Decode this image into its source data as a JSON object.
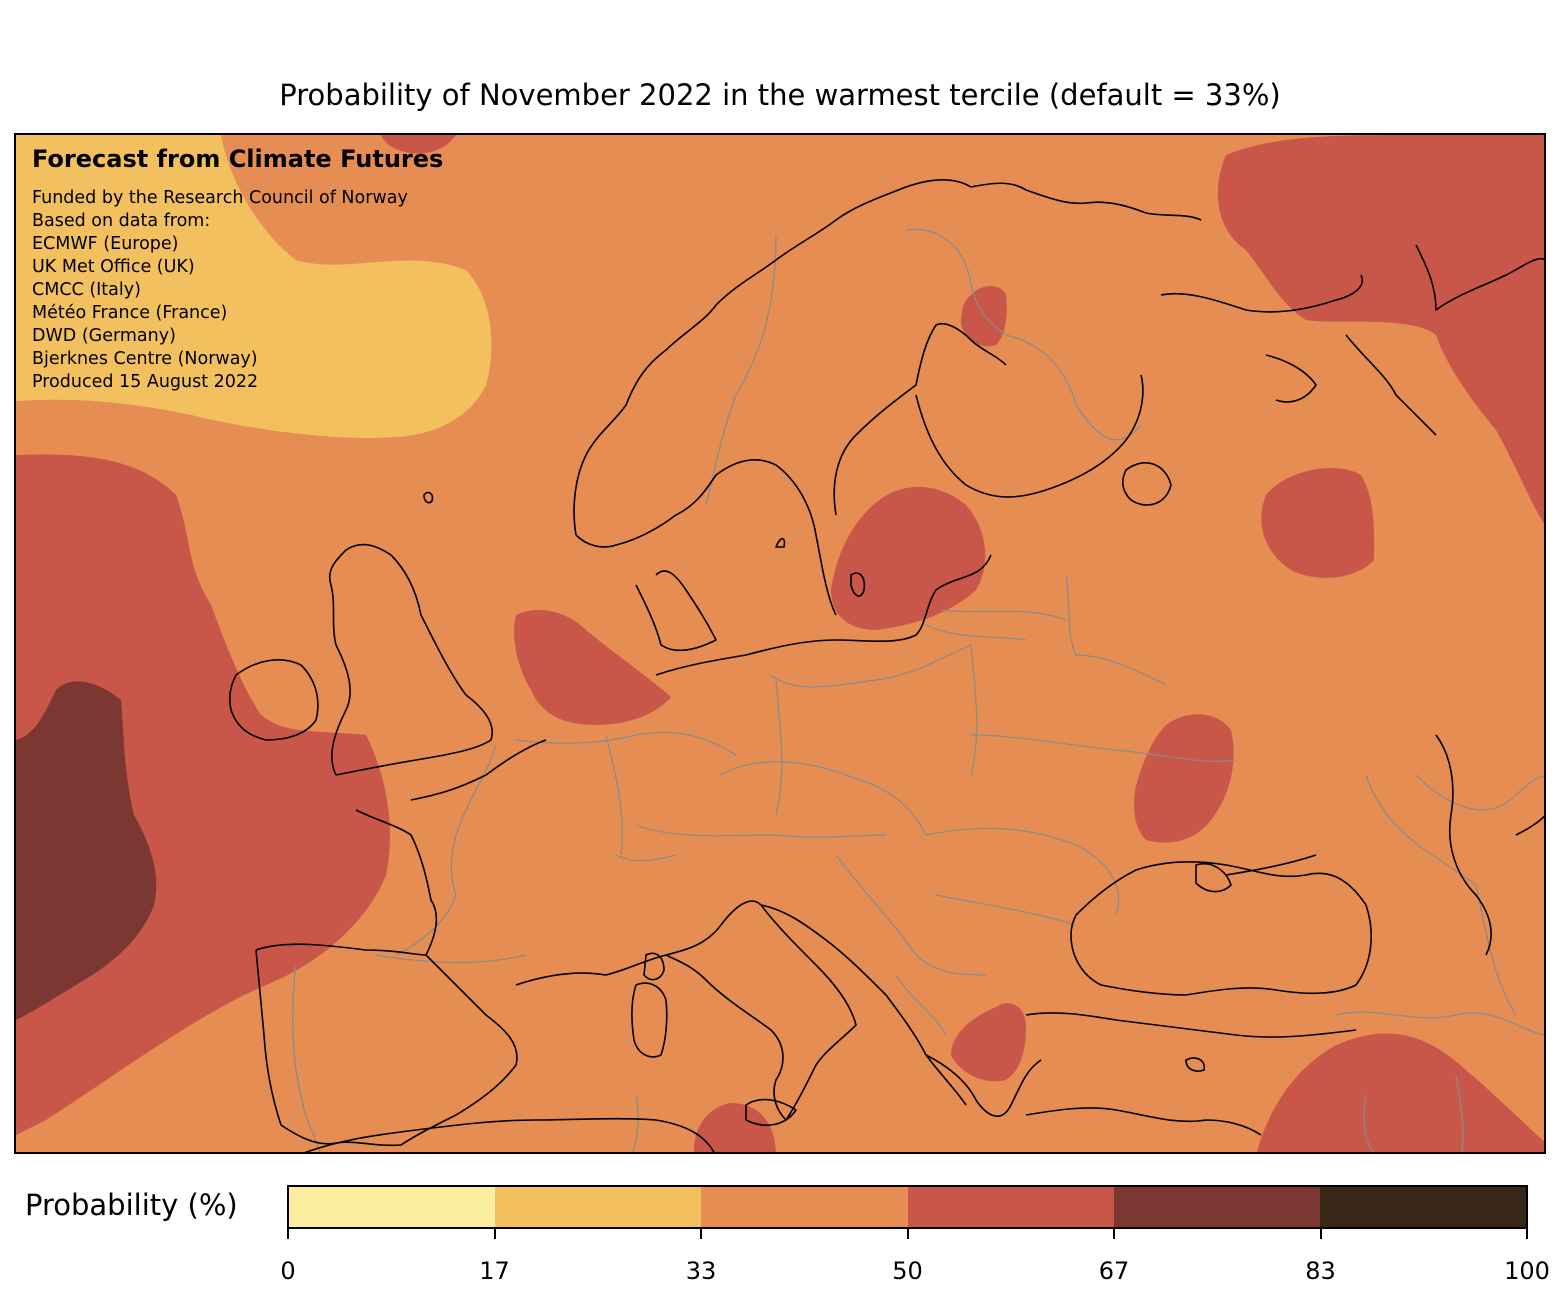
{
  "title": "Probability of November 2022 in the warmest tercile (default = 33%)",
  "credits": {
    "heading": "Forecast from Climate Futures",
    "lines": [
      "Funded by the Research Council of Norway",
      "Based on data from:",
      "ECMWF (Europe)",
      "UK Met Office (UK)",
      "CMCC (Italy)",
      "Météo France (France)",
      "DWD (Germany)",
      "Bjerknes Centre (Norway)",
      "Produced 15 August 2022"
    ]
  },
  "legend": {
    "label": "Probability (%)",
    "colors": [
      "#fbee9f",
      "#f2c05f",
      "#e58d52",
      "#c8574a",
      "#7b3833",
      "#382716"
    ],
    "ticks": [
      "0",
      "17",
      "33",
      "50",
      "67",
      "83",
      "100"
    ]
  },
  "map_colors": {
    "band_17_33": "#f2c05f",
    "band_33_50": "#e58d52",
    "band_50_67": "#c8574a",
    "band_67_83": "#7b3833",
    "coastline": "#000000",
    "borders": "#8a8a8a"
  }
}
